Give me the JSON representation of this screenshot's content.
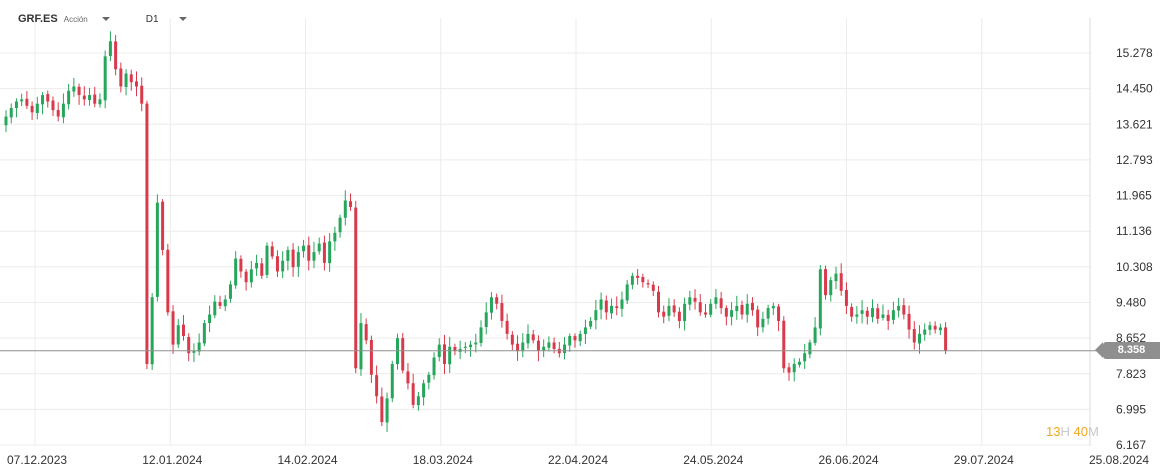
{
  "header": {
    "symbol": "GRF.ES",
    "instrument_type": "Acción",
    "timeframe": "D1"
  },
  "countdown": {
    "hours": "13",
    "hours_unit": "H",
    "minutes": "40",
    "minutes_unit": "M"
  },
  "current_price": {
    "label": "8.358",
    "value": 8.358
  },
  "colors": {
    "up": "#26a65b",
    "down": "#d93a4b",
    "grid": "#ececec",
    "price_line": "#8f8f8f",
    "axis_text": "#333333",
    "countdown": "#f5a623"
  },
  "chart_data": {
    "type": "candlestick",
    "title": "",
    "xlabel": "",
    "ylabel": "",
    "ylim": [
      6.167,
      16.0
    ],
    "grid": true,
    "y_ticks": [
      "15.278",
      "14.450",
      "13.621",
      "12.793",
      "11.965",
      "11.136",
      "10.308",
      "9.480",
      "8.652",
      "7.823",
      "6.995",
      "6.167"
    ],
    "x_ticks": [
      "07.12.2023",
      "12.01.2024",
      "14.02.2024",
      "18.03.2024",
      "22.04.2024",
      "24.05.2024",
      "26.06.2024",
      "29.07.2024",
      "25.08.2024"
    ],
    "close": [
      13.8,
      14.0,
      14.15,
      14.2,
      14.05,
      13.9,
      14.1,
      14.3,
      14.15,
      13.95,
      13.8,
      14.1,
      14.4,
      14.5,
      14.3,
      14.2,
      14.3,
      14.1,
      14.2,
      15.2,
      15.55,
      14.9,
      14.5,
      14.8,
      14.6,
      14.5,
      14.1,
      8.05,
      9.6,
      11.8,
      10.7,
      9.25,
      8.5,
      8.95,
      8.7,
      8.3,
      8.35,
      8.55,
      9.0,
      9.2,
      9.5,
      9.4,
      9.55,
      9.9,
      10.5,
      10.2,
      9.95,
      10.25,
      10.4,
      10.1,
      10.8,
      10.55,
      10.2,
      10.45,
      10.7,
      10.3,
      10.65,
      10.8,
      10.45,
      10.65,
      10.85,
      10.4,
      10.9,
      11.1,
      11.45,
      11.85,
      11.7,
      7.95,
      9.0,
      8.6,
      7.8,
      7.3,
      6.7,
      7.25,
      8.05,
      8.65,
      7.9,
      7.6,
      7.1,
      7.3,
      7.6,
      7.8,
      8.2,
      8.5,
      8.05,
      8.45,
      8.35,
      8.4,
      8.45,
      8.5,
      8.55,
      8.9,
      9.25,
      9.6,
      9.45,
      9.05,
      8.75,
      8.5,
      8.35,
      8.55,
      8.75,
      8.6,
      8.35,
      8.45,
      8.55,
      8.4,
      8.3,
      8.5,
      8.7,
      8.6,
      8.75,
      8.9,
      9.05,
      9.3,
      9.55,
      9.25,
      9.4,
      9.35,
      9.55,
      9.9,
      10.1,
      10.05,
      9.95,
      9.9,
      9.75,
      9.25,
      9.15,
      9.4,
      9.25,
      9.05,
      9.45,
      9.6,
      9.5,
      9.25,
      9.2,
      9.45,
      9.6,
      9.35,
      9.15,
      9.3,
      9.4,
      9.2,
      9.45,
      9.3,
      8.9,
      9.1,
      9.35,
      9.4,
      9.05,
      7.95,
      7.85,
      8.05,
      8.1,
      8.3,
      8.55,
      8.9,
      10.25,
      9.65,
      10.0,
      10.15,
      9.75,
      9.4,
      9.15,
      9.2,
      9.3,
      9.15,
      9.35,
      9.1,
      9.2,
      9.05,
      9.3,
      9.4,
      9.2,
      8.85,
      8.55,
      8.75,
      8.85,
      8.95,
      8.85,
      8.9,
      8.358
    ]
  }
}
